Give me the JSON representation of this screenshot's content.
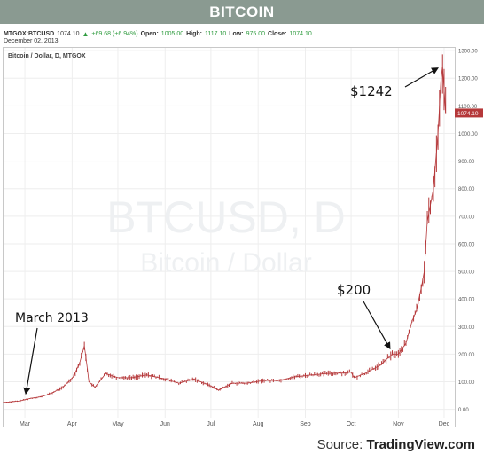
{
  "header": {
    "title": "BITCOIN"
  },
  "quote": {
    "symbol": "MTGOX:BTCUSD",
    "last": "1074.10",
    "change": "+69.68 (+6.94%)",
    "open_label": "Open:",
    "open": "1005.00",
    "high_label": "High:",
    "high": "1117.10",
    "low_label": "Low:",
    "low": "975.00",
    "close_label": "Close:",
    "close": "1074.10",
    "date": "December 02, 2013"
  },
  "panel_label": "Bitcoin / Dollar, D, MTGOX",
  "watermark": {
    "line1": "BTCUSD, D",
    "line2": "Bitcoin / Dollar"
  },
  "source": {
    "prefix": "Source: ",
    "brand": "TradingView.com"
  },
  "colors": {
    "title_bg": "#8a9a91",
    "bars": "#b5383a",
    "price_tag": "#b5383a",
    "up_green": "#2e9b3e"
  },
  "chart_data": {
    "type": "line",
    "title": "",
    "xlabel": "",
    "ylabel": "",
    "x_tick_labels": [
      "Mar",
      "Apr",
      "May",
      "Jun",
      "Jul",
      "Aug",
      "Sep",
      "Oct",
      "Nov",
      "Dec"
    ],
    "y_tick_labels": [
      "0.00",
      "100.00",
      "200.00",
      "300.00",
      "400.00",
      "500.00",
      "600.00",
      "700.00",
      "800.00",
      "900.00",
      "1000.00",
      "1100.00",
      "1200.00",
      "1300.00"
    ],
    "ylim": [
      -30,
      1310
    ],
    "last_price_label": "1074.10",
    "grid": true,
    "series": [
      {
        "x": [
          "2013-02-15",
          "2013-02-25",
          "2013-03-05",
          "2013-03-12",
          "2013-03-19",
          "2013-03-26",
          "2013-04-02",
          "2013-04-06",
          "2013-04-09",
          "2013-04-10",
          "2013-04-12",
          "2013-04-16",
          "2013-04-23",
          "2013-05-01",
          "2013-05-10",
          "2013-05-20",
          "2013-06-01",
          "2013-06-10",
          "2013-06-20",
          "2013-07-01",
          "2013-07-06",
          "2013-07-15",
          "2013-07-25",
          "2013-08-05",
          "2013-08-15",
          "2013-08-25",
          "2013-09-05",
          "2013-09-15",
          "2013-09-25",
          "2013-10-01",
          "2013-10-03",
          "2013-10-10",
          "2013-10-20",
          "2013-10-28",
          "2013-11-01",
          "2013-11-06",
          "2013-11-10",
          "2013-11-13",
          "2013-11-16",
          "2013-11-18",
          "2013-11-20",
          "2013-11-24",
          "2013-11-27",
          "2013-11-29",
          "2013-11-30",
          "2013-12-02"
        ],
        "y": [
          25,
          30,
          40,
          46,
          60,
          80,
          120,
          170,
          230,
          190,
          100,
          80,
          130,
          115,
          115,
          125,
          110,
          95,
          110,
          85,
          70,
          95,
          95,
          105,
          105,
          118,
          125,
          130,
          132,
          135,
          115,
          130,
          160,
          200,
          200,
          240,
          320,
          360,
          440,
          500,
          680,
          800,
          1000,
          1200,
          1242,
          1074
        ]
      }
    ],
    "annotations": [
      {
        "text": "March 2013",
        "x": "2013-03-04",
        "y": 40
      },
      {
        "text": "$200",
        "x": "2013-10-28",
        "y": 200
      },
      {
        "text": "$1242",
        "x": "2013-11-30",
        "y": 1242
      }
    ]
  }
}
